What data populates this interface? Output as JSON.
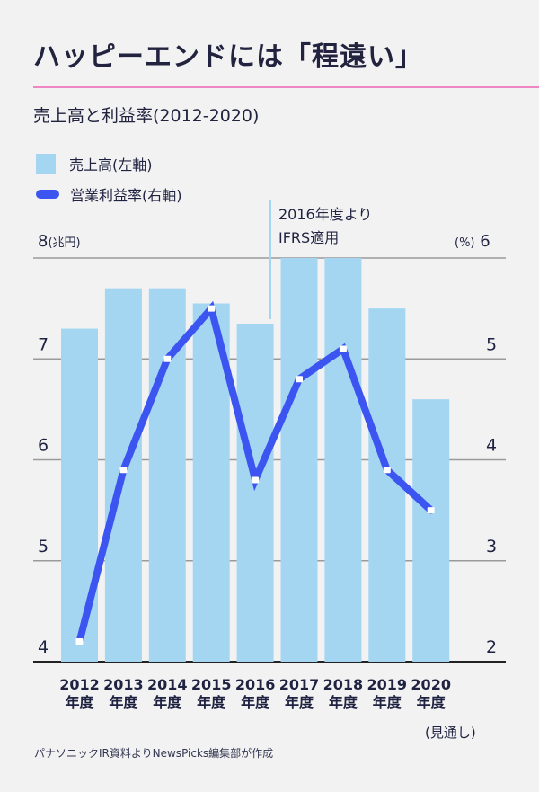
{
  "header": {
    "title": "ハッピーエンドには「程遠い」",
    "subtitle": "売上高と利益率(2012-2020)",
    "accent_color": "#ee86c3"
  },
  "legend": {
    "items": [
      {
        "label": "売上高(左軸)",
        "type": "bar",
        "color": "#a4d6f2"
      },
      {
        "label": "営業利益率(右軸)",
        "type": "line",
        "color": "#3d55f0"
      }
    ]
  },
  "annotation": {
    "line1": "2016年度より",
    "line2": "IFRS適用"
  },
  "axes": {
    "left_top": "8",
    "left_unit": "(兆円)",
    "right_unit": "(%)",
    "right_top": "6"
  },
  "footnote_2020": "(見通し)",
  "source": "パナソニックIR資料よりNewsPicks編集部が作成",
  "chart_data": {
    "type": "bar+line",
    "title": "売上高と利益率(2012-2020)",
    "categories": [
      "2012年度",
      "2013年度",
      "2014年度",
      "2015年度",
      "2016年度",
      "2017年度",
      "2018年度",
      "2019年度",
      "2020年度"
    ],
    "category_years": [
      "2012",
      "2013",
      "2014",
      "2015",
      "2016",
      "2017",
      "2018",
      "2019",
      "2020"
    ],
    "category_suffix": "年度",
    "series": [
      {
        "name": "売上高(左軸)",
        "type": "bar",
        "axis": "left",
        "unit": "兆円",
        "color": "#a4d6f2",
        "values": [
          7.3,
          7.7,
          7.7,
          7.55,
          7.35,
          8.0,
          8.0,
          7.5,
          6.6
        ]
      },
      {
        "name": "営業利益率(右軸)",
        "type": "line",
        "axis": "right",
        "unit": "%",
        "color": "#3d55f0",
        "values": [
          2.2,
          3.9,
          5.0,
          5.5,
          3.8,
          4.8,
          5.1,
          3.9,
          3.5
        ]
      }
    ],
    "left_axis": {
      "label": "兆円",
      "ylim": [
        4,
        8
      ],
      "ticks": [
        "4",
        "5",
        "6",
        "7",
        "8"
      ]
    },
    "right_axis": {
      "label": "%",
      "ylim": [
        2,
        6
      ],
      "ticks": [
        "2",
        "3",
        "4",
        "5",
        "6"
      ]
    },
    "annotations": [
      {
        "at": "2016年度",
        "text": "2016年度より IFRS適用"
      }
    ],
    "notes": [
      "2020年度 (見通し)"
    ],
    "grid": true,
    "legend_position": "top-left"
  }
}
